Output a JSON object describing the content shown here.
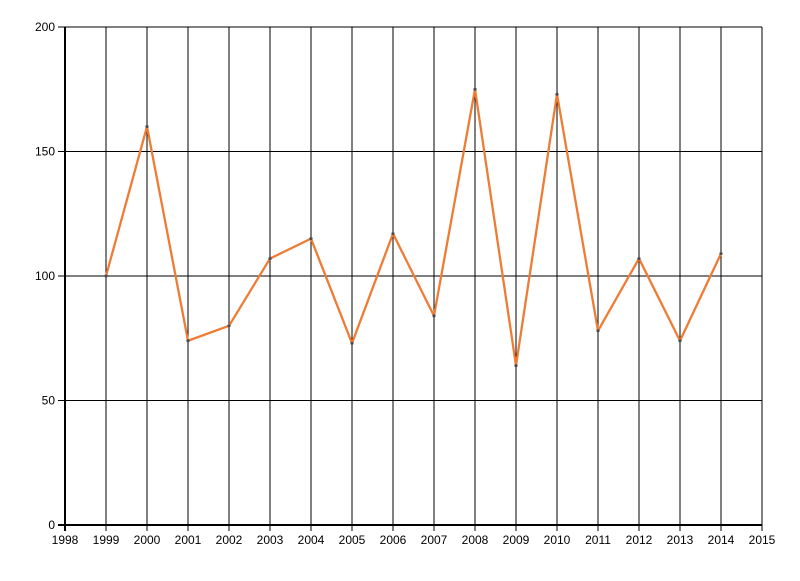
{
  "chart_data": {
    "type": "line",
    "title": "",
    "xlabel": "",
    "ylabel": "",
    "x": [
      1999,
      2000,
      2001,
      2002,
      2003,
      2004,
      2005,
      2006,
      2007,
      2008,
      2009,
      2010,
      2011,
      2012,
      2013,
      2014
    ],
    "values": [
      100,
      160,
      74,
      80,
      107,
      115,
      73,
      117,
      84,
      175,
      64,
      173,
      78,
      107,
      74,
      109
    ],
    "xlim": [
      1998,
      2015
    ],
    "ylim": [
      0,
      200
    ],
    "x_ticks": [
      1998,
      1999,
      2000,
      2001,
      2002,
      2003,
      2004,
      2005,
      2006,
      2007,
      2008,
      2009,
      2010,
      2011,
      2012,
      2013,
      2014,
      2015
    ],
    "y_ticks": [
      0,
      50,
      100,
      150,
      200
    ],
    "grid": true,
    "legend_position": "none",
    "colors": {
      "line": "#ee7c35",
      "marker": "#4d4d4d",
      "grid": "#000000",
      "axis": "#000000",
      "text": "#000000",
      "background": "#ffffff"
    }
  }
}
